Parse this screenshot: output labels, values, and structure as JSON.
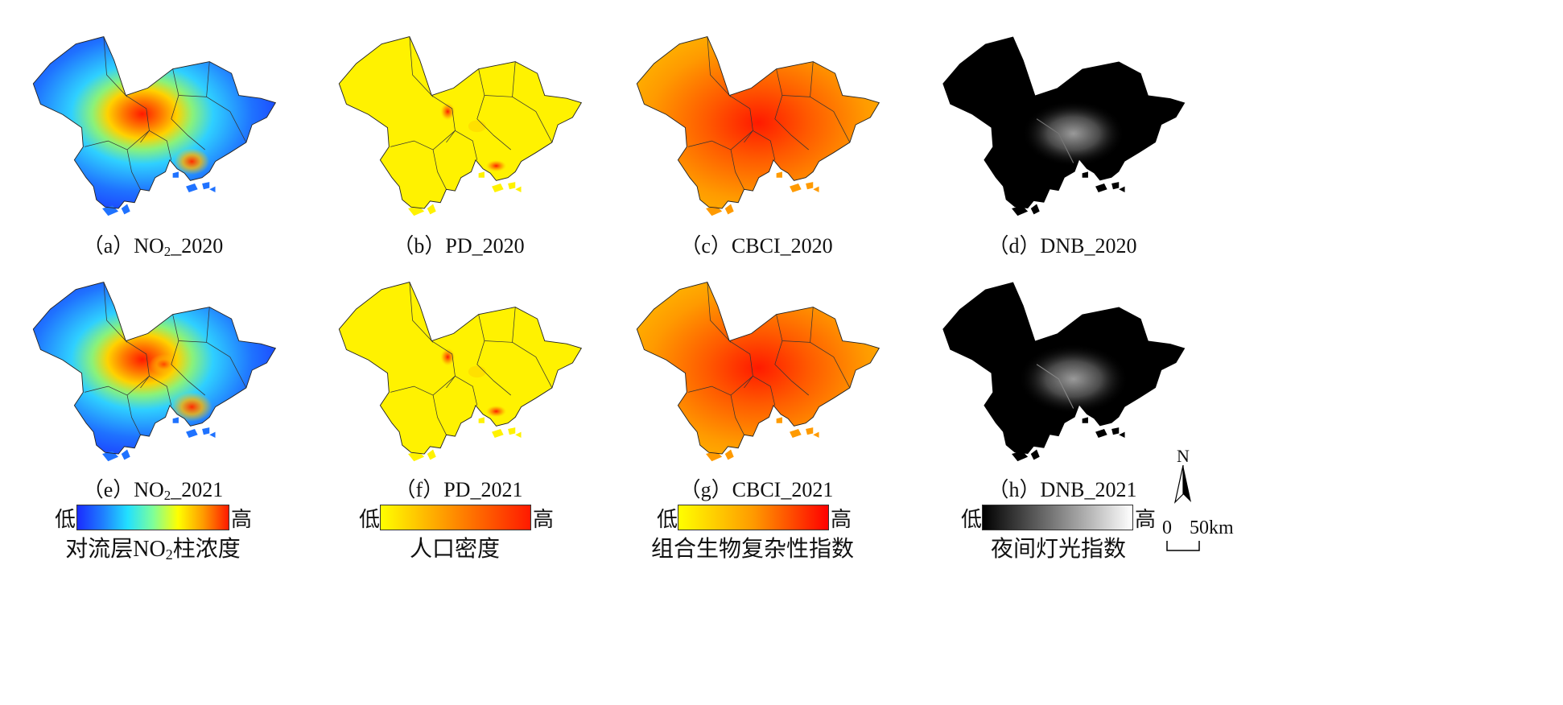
{
  "panels": [
    {
      "label_pre": "（a）NO",
      "label_sub": "2",
      "label_post": "_2020",
      "scheme": "no2"
    },
    {
      "label_pre": "（b）PD_2020",
      "label_sub": "",
      "label_post": "",
      "scheme": "pd"
    },
    {
      "label_pre": "（c）CBCI_2020",
      "label_sub": "",
      "label_post": "",
      "scheme": "cbci"
    },
    {
      "label_pre": "（d）DNB_2020",
      "label_sub": "",
      "label_post": "",
      "scheme": "dnb"
    },
    {
      "label_pre": "（e）NO",
      "label_sub": "2",
      "label_post": "_2021",
      "scheme": "no2"
    },
    {
      "label_pre": "（f）PD_2021",
      "label_sub": "",
      "label_post": "",
      "scheme": "pd"
    },
    {
      "label_pre": "（g）CBCI_2021",
      "label_sub": "",
      "label_post": "",
      "scheme": "cbci"
    },
    {
      "label_pre": "（h）DNB_2021",
      "label_sub": "",
      "label_post": "",
      "scheme": "dnb"
    }
  ],
  "legends": [
    {
      "low": "低",
      "high": "高",
      "title_pre": "对流层NO",
      "title_sub": "2",
      "title_post": "柱浓度",
      "colors": [
        "#1a2bff",
        "#1f7dff",
        "#22e0ff",
        "#7dff9a",
        "#ffff00",
        "#ff9a00",
        "#ff1a00"
      ]
    },
    {
      "low": "低",
      "high": "高",
      "title_pre": "人口密度",
      "title_sub": "",
      "title_post": "",
      "colors": [
        "#ffff00",
        "#ff8a00",
        "#ff1a00"
      ]
    },
    {
      "low": "低",
      "high": "高",
      "title_pre": "组合生物复杂性指数",
      "title_sub": "",
      "title_post": "",
      "colors": [
        "#ffff00",
        "#ff9a00",
        "#ff0000"
      ]
    },
    {
      "low": "低",
      "high": "高",
      "title_pre": "夜间灯光指数",
      "title_sub": "",
      "title_post": "",
      "colors": [
        "#000000",
        "#ffffff"
      ]
    }
  ],
  "north_label": "N",
  "scale_bar": {
    "zero": "0",
    "dist": "50",
    "unit": "km"
  }
}
